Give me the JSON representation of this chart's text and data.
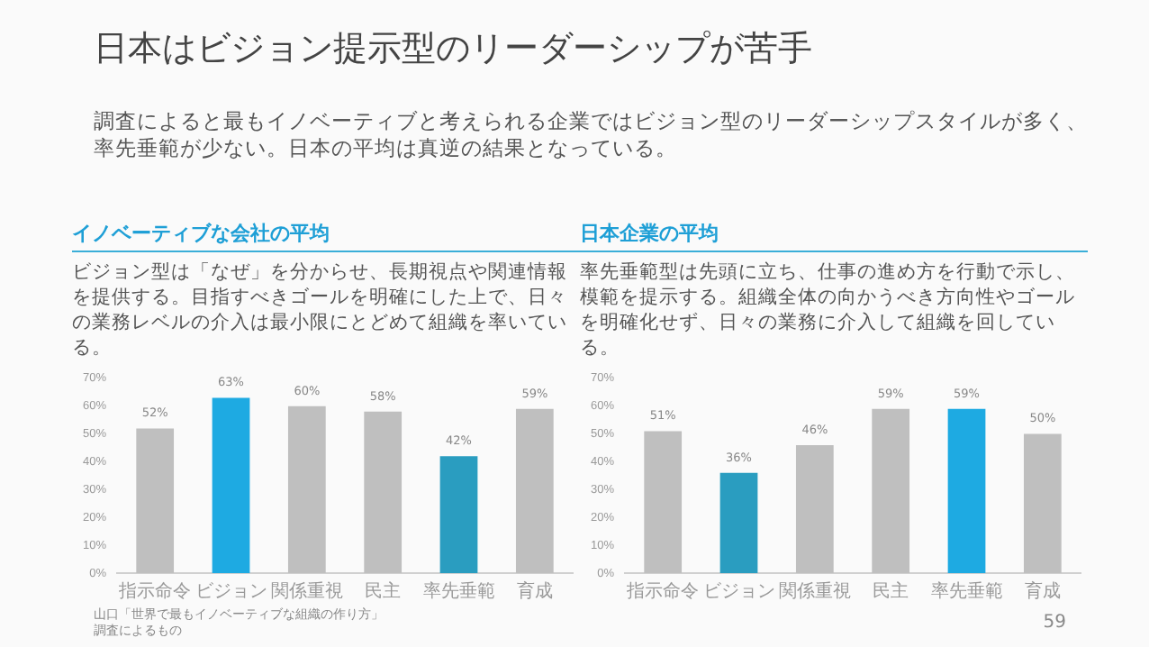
{
  "chart_data": [
    {
      "type": "bar",
      "title": "イノベーティブな会社の平均",
      "subtitle": "ビジョン型は「なぜ」を分からせ、長期視点や関連情報を提供する。目指すべきゴールを明確にした上で、日々の業務レベルの介入は最小限にとどめて組織を率いている。",
      "annotations": [
        "日本はビジョン提示型のリーダーシップが苦手",
        "調査によると最もイノベーティブと考えられる企業ではビジョン型のリーダーシップスタイルが多く、率先垂範が少ない。日本の平均は真逆の結果となっている。"
      ],
      "categories": [
        "指示命令",
        "ビジョン",
        "関係重視",
        "民主",
        "率先垂範",
        "育成"
      ],
      "values": [
        52,
        63,
        60,
        58,
        42,
        59
      ],
      "value_labels": [
        "52%",
        "63%",
        "60%",
        "58%",
        "42%",
        "59%"
      ],
      "colors": [
        "#bfbfbf",
        "#1eaae2",
        "#bfbfbf",
        "#bfbfbf",
        "#2a9dc0",
        "#bfbfbf"
      ],
      "ylim": [
        0,
        70
      ],
      "yticks": [
        {
          "value": 0,
          "label": "0%"
        },
        {
          "value": 10,
          "label": "10%"
        },
        {
          "value": 20,
          "label": "20%"
        },
        {
          "value": 30,
          "label": "30%"
        },
        {
          "value": 40,
          "label": "40%"
        },
        {
          "value": 50,
          "label": "50%"
        },
        {
          "value": 60,
          "label": "60%"
        },
        {
          "value": 70,
          "label": "70%"
        }
      ],
      "grid": false,
      "legend": false
    },
    {
      "type": "bar",
      "title": "日本企業の平均",
      "subtitle": "率先垂範型は先頭に立ち、仕事の進め方を行動で示し、模範を提示する。組織全体の向かうべき方向性やゴールを明確化せず、日々の業務に介入して組織を回している。",
      "annotations": [
        "山口「世界で最もイノベーティブな組織の作り方」",
        "調査によるもの",
        "59"
      ],
      "categories": [
        "指示命令",
        "ビジョン",
        "関係重視",
        "民主",
        "率先垂範",
        "育成"
      ],
      "values": [
        51,
        36,
        46,
        59,
        59,
        50
      ],
      "value_labels": [
        "51%",
        "36%",
        "46%",
        "59%",
        "59%",
        "50%"
      ],
      "colors": [
        "#bfbfbf",
        "#2a9dc0",
        "#bfbfbf",
        "#bfbfbf",
        "#1eaae2",
        "#bfbfbf"
      ],
      "ylim": [
        0,
        70
      ],
      "yticks": [
        {
          "value": 0,
          "label": "0%"
        },
        {
          "value": 10,
          "label": "10%"
        },
        {
          "value": 20,
          "label": "20%"
        },
        {
          "value": 30,
          "label": "30%"
        },
        {
          "value": 40,
          "label": "40%"
        },
        {
          "value": 50,
          "label": "50%"
        },
        {
          "value": 60,
          "label": "60%"
        },
        {
          "value": 70,
          "label": "70%"
        }
      ],
      "grid": false,
      "legend": false
    }
  ]
}
